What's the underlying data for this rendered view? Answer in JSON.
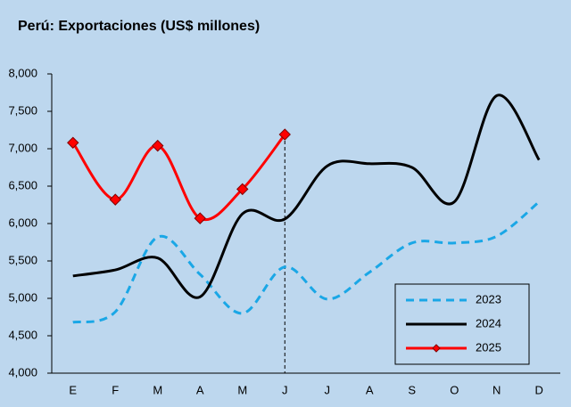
{
  "chart_data": {
    "type": "line",
    "title": "Perú: Exportaciones (US$ millones)",
    "categories": [
      "E",
      "F",
      "M",
      "A",
      "M",
      "J",
      "J",
      "A",
      "S",
      "O",
      "N",
      "D"
    ],
    "series": [
      {
        "name": "2023",
        "color": "#1aa7e6",
        "dash": true,
        "marker": false,
        "values": [
          4680,
          4820,
          5820,
          5320,
          4800,
          5420,
          4990,
          5350,
          5740,
          5740,
          5830,
          6290
        ]
      },
      {
        "name": "2024",
        "color": "#000000",
        "dash": false,
        "marker": false,
        "values": [
          5300,
          5380,
          5540,
          5020,
          6130,
          6060,
          6770,
          6800,
          6750,
          6290,
          7710,
          6850
        ]
      },
      {
        "name": "2025",
        "color": "#ff0000",
        "dash": false,
        "marker": true,
        "values": [
          7080,
          6320,
          7040,
          6070,
          6460,
          7190,
          null,
          null,
          null,
          null,
          null,
          null
        ]
      }
    ],
    "ylim": [
      4000,
      8000
    ],
    "yticks": [
      {
        "value": 4000,
        "label": "4,000"
      },
      {
        "value": 4500,
        "label": "4,500"
      },
      {
        "value": 5000,
        "label": "5,000"
      },
      {
        "value": 5500,
        "label": "5,500"
      },
      {
        "value": 6000,
        "label": "6,000"
      },
      {
        "value": 6500,
        "label": "6,500"
      },
      {
        "value": 7000,
        "label": "7,000"
      },
      {
        "value": 7500,
        "label": "7,500"
      },
      {
        "value": 8000,
        "label": "8,000"
      }
    ],
    "grid": false,
    "legend": "lower right"
  }
}
